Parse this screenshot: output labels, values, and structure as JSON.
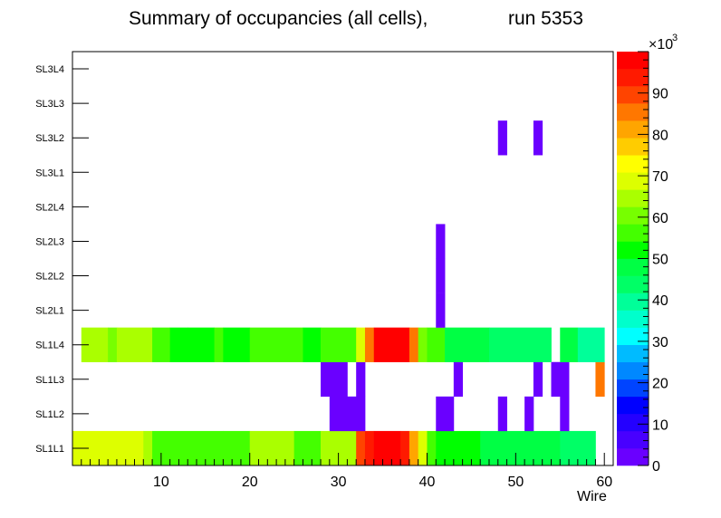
{
  "chart_data": {
    "type": "heatmap",
    "title": "Summary of occupancies (all cells),",
    "run_label": "run 5353",
    "xlabel": "Wire",
    "ylabel": "",
    "xlim": [
      0,
      61
    ],
    "xticks": [
      "10",
      "20",
      "30",
      "40",
      "50",
      "60"
    ],
    "rows": [
      "SL1L1",
      "SL1L2",
      "SL1L3",
      "SL1L4",
      "SL2L1",
      "SL2L2",
      "SL2L3",
      "SL2L4",
      "SL3L1",
      "SL3L2",
      "SL3L3",
      "SL3L4"
    ],
    "zlim": [
      0,
      100000
    ],
    "z_multiplier": "×10",
    "z_exponent": "3",
    "z_ticks": [
      "0",
      "10",
      "20",
      "30",
      "40",
      "50",
      "60",
      "70",
      "80",
      "90"
    ],
    "palette": [
      "#6a00ff",
      "#4800ff",
      "#2400ff",
      "#0000ff",
      "#0044ff",
      "#0088ff",
      "#00bbff",
      "#00ffff",
      "#00ffcc",
      "#00ff99",
      "#00ff66",
      "#00ff44",
      "#00ff00",
      "#44ff00",
      "#77ff00",
      "#aaff00",
      "#ddff00",
      "#ffff00",
      "#ffcc00",
      "#ffa500",
      "#ff7700",
      "#ff4400",
      "#ff1a00",
      "#ff0000"
    ],
    "series": [
      {
        "name": "SL1L1",
        "segments": [
          [
            0,
            8,
            69000
          ],
          [
            8,
            9,
            66000
          ],
          [
            9,
            17,
            55000
          ],
          [
            17,
            20,
            58000
          ],
          [
            20,
            25,
            66000
          ],
          [
            25,
            28,
            55000
          ],
          [
            28,
            32,
            66000
          ],
          [
            32,
            33,
            90000
          ],
          [
            33,
            34,
            94000
          ],
          [
            34,
            37,
            99000
          ],
          [
            37,
            38,
            94000
          ],
          [
            38,
            39,
            80000
          ],
          [
            39,
            40,
            67000
          ],
          [
            40,
            41,
            55000
          ],
          [
            41,
            46,
            52000
          ],
          [
            46,
            53,
            46000
          ],
          [
            53,
            55,
            46000
          ],
          [
            55,
            59,
            43000
          ]
        ]
      },
      {
        "name": "SL1L2",
        "segments": [
          [
            29,
            33,
            1000
          ],
          [
            41,
            43,
            1000
          ],
          [
            48,
            49,
            1000
          ],
          [
            51,
            52,
            1000
          ],
          [
            55,
            56,
            1000
          ]
        ]
      },
      {
        "name": "SL1L3",
        "segments": [
          [
            28,
            31,
            1000
          ],
          [
            32,
            33,
            1000
          ],
          [
            43,
            44,
            1000
          ],
          [
            52,
            53,
            1000
          ],
          [
            54,
            56,
            1000
          ],
          [
            59,
            60,
            86000
          ]
        ]
      },
      {
        "name": "SL1L4",
        "segments": [
          [
            1,
            4,
            66000
          ],
          [
            4,
            5,
            60000
          ],
          [
            5,
            9,
            66000
          ],
          [
            9,
            11,
            55000
          ],
          [
            11,
            13,
            50000
          ],
          [
            13,
            16,
            52000
          ],
          [
            16,
            17,
            55000
          ],
          [
            17,
            20,
            52000
          ],
          [
            20,
            26,
            58000
          ],
          [
            26,
            28,
            52000
          ],
          [
            28,
            32,
            58000
          ],
          [
            32,
            33,
            69000
          ],
          [
            33,
            34,
            86000
          ],
          [
            34,
            38,
            98000
          ],
          [
            38,
            39,
            86000
          ],
          [
            39,
            40,
            62000
          ],
          [
            40,
            42,
            55000
          ],
          [
            42,
            47,
            47000
          ],
          [
            47,
            54,
            44000
          ],
          [
            55,
            57,
            46000
          ],
          [
            57,
            60,
            38000
          ]
        ]
      },
      {
        "name": "SL2L1",
        "segments": [
          [
            41,
            42,
            1000
          ]
        ]
      },
      {
        "name": "SL2L2",
        "segments": [
          [
            41,
            42,
            1000
          ]
        ]
      },
      {
        "name": "SL2L3",
        "segments": [
          [
            41,
            42,
            1000
          ]
        ]
      },
      {
        "name": "SL2L4",
        "segments": []
      },
      {
        "name": "SL3L1",
        "segments": []
      },
      {
        "name": "SL3L2",
        "segments": [
          [
            48,
            49,
            1000
          ],
          [
            52,
            53,
            1000
          ]
        ]
      },
      {
        "name": "SL3L3",
        "segments": []
      },
      {
        "name": "SL3L4",
        "segments": []
      }
    ]
  }
}
